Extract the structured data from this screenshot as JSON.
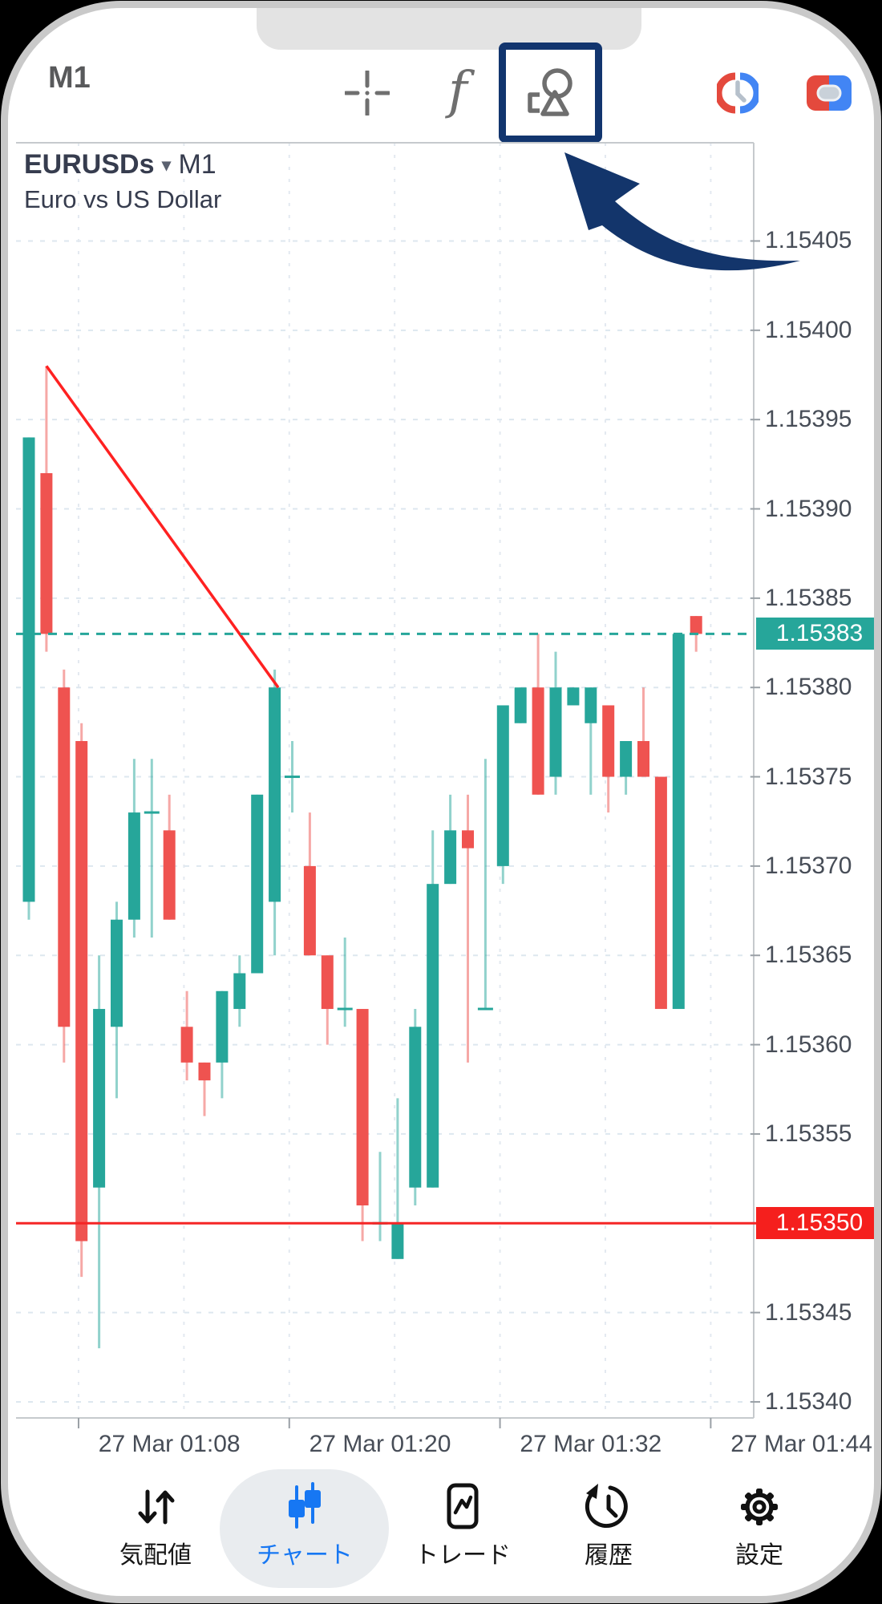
{
  "toolbar": {
    "timeframe": "M1",
    "icons": [
      "crosshair-icon",
      "functions-icon",
      "objects-icon",
      "market-hours-icon",
      "one-click-trading-icon"
    ],
    "highlight_color": "#12356e"
  },
  "chart": {
    "symbol": "EURUSDs",
    "dropdown_arrow": "▾",
    "timeframe": "M1",
    "description": "Euro vs US Dollar",
    "badges": {
      "current": "1.15383",
      "line": "1.15350"
    },
    "y_axis_labels": [
      "1.15405",
      "1.15400",
      "1.15395",
      "1.15390",
      "1.15385",
      "1.15380",
      "1.15375",
      "1.15370",
      "1.15365",
      "1.15360",
      "1.15355",
      "1.15350",
      "1.15345",
      "1.15340"
    ],
    "colors": {
      "up": "#26a69a",
      "down": "#ef5350",
      "current_price_line": "#26a69a",
      "alert_line": "#f52525",
      "trendline": "#ff2121",
      "badge_current": "#26a69a",
      "badge_line": "#f51f1d"
    },
    "chart_data": {
      "type": "candlestick",
      "title": "EURUSDs M1 — Euro vs US Dollar",
      "x": [
        "01:00",
        "01:01",
        "01:02",
        "01:03",
        "01:04",
        "01:05",
        "01:06",
        "01:07",
        "01:08",
        "01:09",
        "01:10",
        "01:11",
        "01:12",
        "01:13",
        "01:14",
        "01:15",
        "01:16",
        "01:17",
        "01:18",
        "01:19",
        "01:20",
        "01:21",
        "01:22",
        "01:23",
        "01:24",
        "01:25",
        "01:26",
        "01:27",
        "01:28",
        "01:29",
        "01:30",
        "01:31",
        "01:32",
        "01:33",
        "01:34",
        "01:35",
        "01:36",
        "01:37",
        "01:38"
      ],
      "ohlc": [
        [
          1.15368,
          1.15394,
          1.15367,
          1.15394
        ],
        [
          1.15392,
          1.15398,
          1.15382,
          1.15383
        ],
        [
          1.1538,
          1.15381,
          1.15359,
          1.15361
        ],
        [
          1.15377,
          1.15378,
          1.15347,
          1.15349
        ],
        [
          1.15352,
          1.15365,
          1.15343,
          1.15362
        ],
        [
          1.15361,
          1.15368,
          1.15357,
          1.15367
        ],
        [
          1.15367,
          1.15376,
          1.15366,
          1.15373
        ],
        [
          1.15373,
          1.15376,
          1.15366,
          1.15373
        ],
        [
          1.15372,
          1.15374,
          1.15367,
          1.15367
        ],
        [
          1.15361,
          1.15363,
          1.15358,
          1.15359
        ],
        [
          1.15359,
          1.15359,
          1.15356,
          1.15358
        ],
        [
          1.15359,
          1.15363,
          1.15357,
          1.15363
        ],
        [
          1.15362,
          1.15365,
          1.15361,
          1.15364
        ],
        [
          1.15364,
          1.15374,
          1.15364,
          1.15374
        ],
        [
          1.15368,
          1.15381,
          1.15365,
          1.1538
        ],
        [
          1.15375,
          1.15377,
          1.15373,
          1.15375
        ],
        [
          1.1537,
          1.15373,
          1.15365,
          1.15365
        ],
        [
          1.15365,
          1.15365,
          1.1536,
          1.15362
        ],
        [
          1.15362,
          1.15366,
          1.15361,
          1.15362
        ],
        [
          1.15362,
          1.15362,
          1.15349,
          1.15351
        ],
        [
          1.1535,
          1.15354,
          1.15349,
          1.1535
        ],
        [
          1.15348,
          1.15357,
          1.15348,
          1.1535
        ],
        [
          1.15352,
          1.15362,
          1.15351,
          1.15361
        ],
        [
          1.15352,
          1.15372,
          1.15352,
          1.15369
        ],
        [
          1.15369,
          1.15374,
          1.15369,
          1.15372
        ],
        [
          1.15372,
          1.15374,
          1.15359,
          1.15371
        ],
        [
          1.15362,
          1.15376,
          1.15362,
          1.15362
        ],
        [
          1.1537,
          1.15379,
          1.15369,
          1.15379
        ],
        [
          1.15378,
          1.1538,
          1.15378,
          1.1538
        ],
        [
          1.1538,
          1.15383,
          1.15374,
          1.15374
        ],
        [
          1.15375,
          1.15382,
          1.15374,
          1.1538
        ],
        [
          1.15379,
          1.1538,
          1.15379,
          1.1538
        ],
        [
          1.15378,
          1.1538,
          1.15374,
          1.1538
        ],
        [
          1.15379,
          1.15379,
          1.15373,
          1.15375
        ],
        [
          1.15375,
          1.15377,
          1.15374,
          1.15377
        ],
        [
          1.15377,
          1.1538,
          1.15375,
          1.15375
        ],
        [
          1.15375,
          1.15375,
          1.15362,
          1.15362
        ],
        [
          1.15362,
          1.15383,
          1.15362,
          1.15383
        ],
        [
          1.15384,
          1.15384,
          1.15382,
          1.15383
        ]
      ],
      "ylim": [
        1.153391,
        1.154105
      ],
      "y_ticks": [
        1.1534,
        1.15345,
        1.1535,
        1.15355,
        1.1536,
        1.15365,
        1.1537,
        1.15375,
        1.1538,
        1.15385,
        1.1539,
        1.15395,
        1.154,
        1.15405
      ],
      "x_tick_labels": [
        "27 Mar 01:08",
        "27 Mar 01:20",
        "27 Mar 01:32",
        "27 Mar 01:44"
      ],
      "x_tick_bars": [
        8,
        20,
        32,
        44
      ],
      "v_grid_bars": [
        2.83,
        8.83,
        14.83,
        20.83,
        26.83,
        32.83,
        38.83
      ],
      "current_price": 1.15383,
      "horizontal_line": 1.1535,
      "trendline": {
        "from": {
          "bar": 1,
          "price": 1.15398
        },
        "to": {
          "bar": 14.2,
          "price": 1.1538
        }
      },
      "grid": true,
      "legend_position": "none"
    }
  },
  "nav": {
    "active_color": "#1677f3",
    "items": [
      {
        "label": "気配値",
        "icon": "quotes-arrows-icon",
        "active": false
      },
      {
        "label": "チャート",
        "icon": "chart-candles-icon",
        "active": true
      },
      {
        "label": "トレード",
        "icon": "trade-icon",
        "active": false
      },
      {
        "label": "履歴",
        "icon": "history-icon",
        "active": false
      },
      {
        "label": "設定",
        "icon": "settings-gear-icon",
        "active": false
      }
    ]
  }
}
